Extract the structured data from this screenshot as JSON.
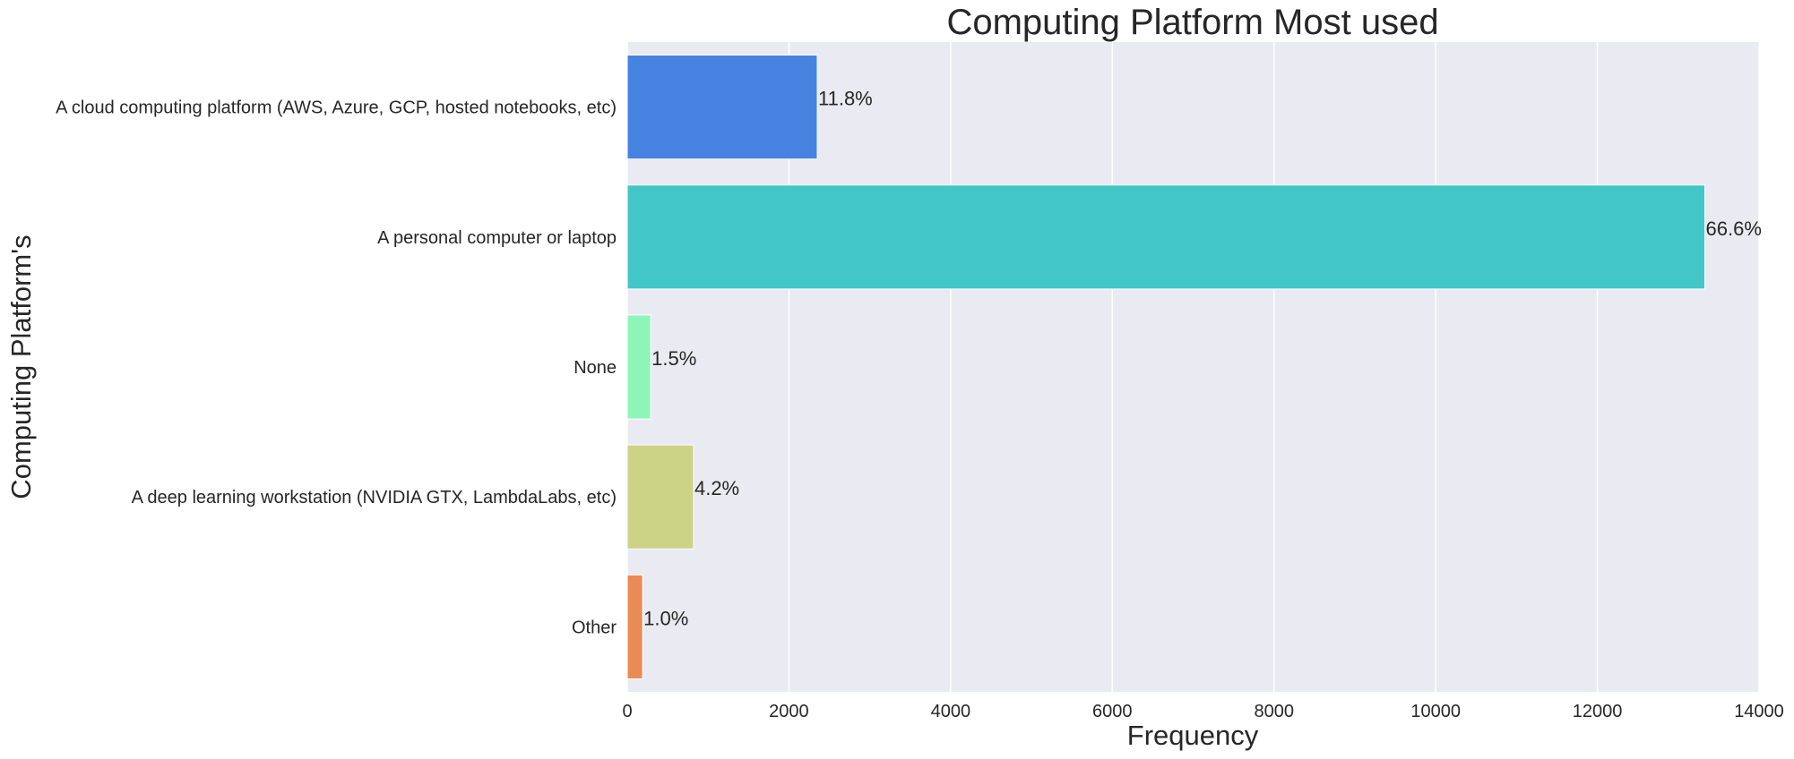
{
  "chart_data": {
    "type": "bar",
    "orientation": "horizontal",
    "title": "Computing Platform Most used",
    "xlabel": "Frequency",
    "ylabel": "Computing Platform's",
    "xlim": [
      0,
      14000
    ],
    "xticks": [
      0,
      2000,
      4000,
      6000,
      8000,
      10000,
      12000,
      14000
    ],
    "grid": true,
    "categories": [
      "A cloud computing platform (AWS, Azure, GCP, hosted notebooks, etc)",
      "A personal computer or laptop",
      "None",
      "A deep learning workstation (NVIDIA GTX, LambdaLabs, etc)",
      "Other"
    ],
    "values": [
      2350,
      13330,
      290,
      820,
      190
    ],
    "data_labels": [
      "11.8%",
      "66.6%",
      "1.5%",
      "4.2%",
      "1.0%"
    ],
    "colors": [
      "#4682e0",
      "#42c6c8",
      "#8ef5b8",
      "#ccd386",
      "#e88b55"
    ],
    "background_color": "#eaeaf2",
    "grid_color": "#ffffff"
  }
}
